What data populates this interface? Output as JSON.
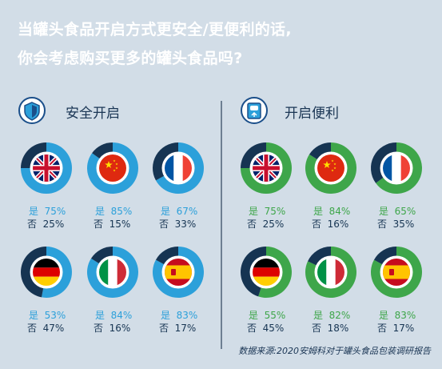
{
  "title_lines": [
    "当罐头食品开启方式更安全/更便利的话,",
    "你会考虑购买更多的罐头食品吗?"
  ],
  "panels": [
    {
      "label": "安全开启",
      "icon": "shield-icon",
      "color": "#2ca0da"
    },
    {
      "label": "开启便利",
      "icon": "can-opener-icon",
      "color": "#3ea64a"
    }
  ],
  "yes_label": "是",
  "no_label": "否",
  "source": "数据来源:2020安姆科对于罐头食品包装调研报告",
  "colors": {
    "background": "#d2dde7",
    "dark": "#163452",
    "safe": "#2ca0da",
    "convenient": "#3ea64a"
  },
  "chart_data": [
    {
      "type": "pie",
      "title": "安全开启",
      "categories": [
        "英国",
        "中国",
        "法国",
        "德国",
        "意大利",
        "西班牙"
      ],
      "flags": [
        "uk-flag",
        "china-flag",
        "france-flag",
        "germany-flag",
        "italy-flag",
        "spain-flag"
      ],
      "series": [
        {
          "name": "是",
          "values": [
            75,
            85,
            67,
            53,
            84,
            83
          ]
        },
        {
          "name": "否",
          "values": [
            25,
            15,
            33,
            47,
            16,
            17
          ]
        }
      ]
    },
    {
      "type": "pie",
      "title": "开启便利",
      "categories": [
        "英国",
        "中国",
        "法国",
        "德国",
        "意大利",
        "西班牙"
      ],
      "flags": [
        "uk-flag",
        "china-flag",
        "france-flag",
        "germany-flag",
        "italy-flag",
        "spain-flag"
      ],
      "series": [
        {
          "name": "是",
          "values": [
            75,
            84,
            65,
            55,
            82,
            83
          ]
        },
        {
          "name": "否",
          "values": [
            25,
            16,
            35,
            45,
            18,
            17
          ]
        }
      ]
    }
  ]
}
